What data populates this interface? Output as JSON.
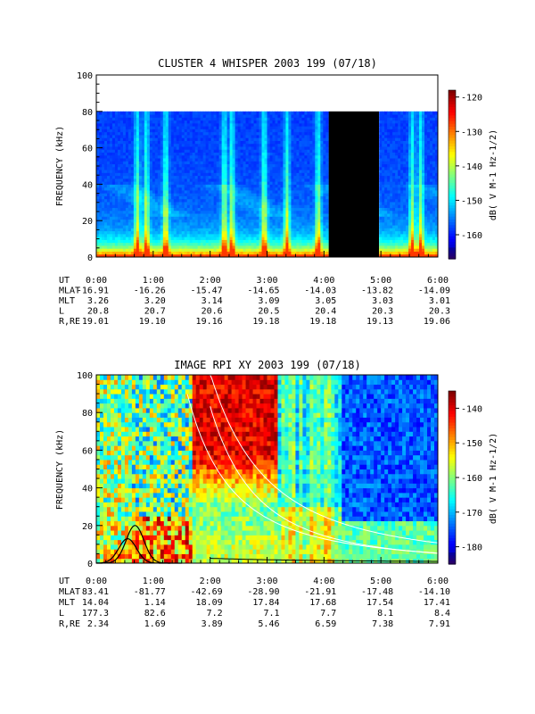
{
  "chart_data": [
    {
      "type": "heatmap",
      "title": "CLUSTER 4 WHISPER 2003 199 (07/18)",
      "ylabel": "FREQUENCY (kHz)",
      "ylim": [
        0,
        100
      ],
      "yticks": [
        "0",
        "20",
        "40",
        "60",
        "80",
        "100"
      ],
      "xlim": [
        "0:00",
        "6:00"
      ],
      "colorbar": {
        "label": "dB( V M-1 Hz-1/2)",
        "range": [
          -167,
          -118
        ],
        "ticks": [
          "-120",
          "-130",
          "-140",
          "-150",
          "-160"
        ]
      },
      "data_gap": {
        "start": "4:05",
        "end": "4:58"
      },
      "data_top_khz": 80,
      "ephemeris": {
        "row_labels": [
          "UT",
          "MLAT",
          "MLT",
          "L",
          "R,RE"
        ],
        "columns": [
          {
            "UT": "0:00",
            "MLAT": "-16.91",
            "MLT": "3.26",
            "L": "20.8",
            "RE": "19.01"
          },
          {
            "UT": "1:00",
            "MLAT": "-16.26",
            "MLT": "3.20",
            "L": "20.7",
            "RE": "19.10"
          },
          {
            "UT": "2:00",
            "MLAT": "-15.47",
            "MLT": "3.14",
            "L": "20.6",
            "RE": "19.16"
          },
          {
            "UT": "3:00",
            "MLAT": "-14.65",
            "MLT": "3.09",
            "L": "20.5",
            "RE": "19.18"
          },
          {
            "UT": "4:00",
            "MLAT": "-14.03",
            "MLT": "3.05",
            "L": "20.4",
            "RE": "19.18"
          },
          {
            "UT": "5:00",
            "MLAT": "-13.82",
            "MLT": "3.03",
            "L": "20.3",
            "RE": "19.13"
          },
          {
            "UT": "6:00",
            "MLAT": "-14.09",
            "MLT": "3.01",
            "L": "20.3",
            "RE": "19.06"
          }
        ]
      }
    },
    {
      "type": "heatmap",
      "title": "IMAGE RPI XY 2003 199 (07/18)",
      "ylabel": "FREQUENCY (kHz)",
      "ylim": [
        0,
        100
      ],
      "yticks": [
        "0",
        "20",
        "40",
        "60",
        "80",
        "100"
      ],
      "xlim": [
        "0:00",
        "6:00"
      ],
      "colorbar": {
        "label": "dB( V M-1 Hz-1/2)",
        "range": [
          -185,
          -135
        ],
        "ticks": [
          "-140",
          "-150",
          "-160",
          "-170",
          "-180"
        ]
      },
      "ephemeris": {
        "row_labels": [
          "UT",
          "MLAT",
          "MLT",
          "L",
          "R,RE"
        ],
        "columns": [
          {
            "UT": "0:00",
            "MLAT": "83.41",
            "MLT": "14.04",
            "L": "177.3",
            "RE": "2.34"
          },
          {
            "UT": "1:00",
            "MLAT": "-81.77",
            "MLT": "1.14",
            "L": "82.6",
            "RE": "1.69"
          },
          {
            "UT": "2:00",
            "MLAT": "-42.69",
            "MLT": "18.09",
            "L": "7.2",
            "RE": "3.89"
          },
          {
            "UT": "3:00",
            "MLAT": "-28.90",
            "MLT": "17.84",
            "L": "7.1",
            "RE": "5.46"
          },
          {
            "UT": "4:00",
            "MLAT": "-21.91",
            "MLT": "17.68",
            "L": "7.7",
            "RE": "6.59"
          },
          {
            "UT": "5:00",
            "MLAT": "-17.48",
            "MLT": "17.54",
            "L": "8.1",
            "RE": "7.38"
          },
          {
            "UT": "6:00",
            "MLAT": "-14.10",
            "MLT": "17.41",
            "L": "8.4",
            "RE": "7.91"
          }
        ]
      }
    }
  ]
}
